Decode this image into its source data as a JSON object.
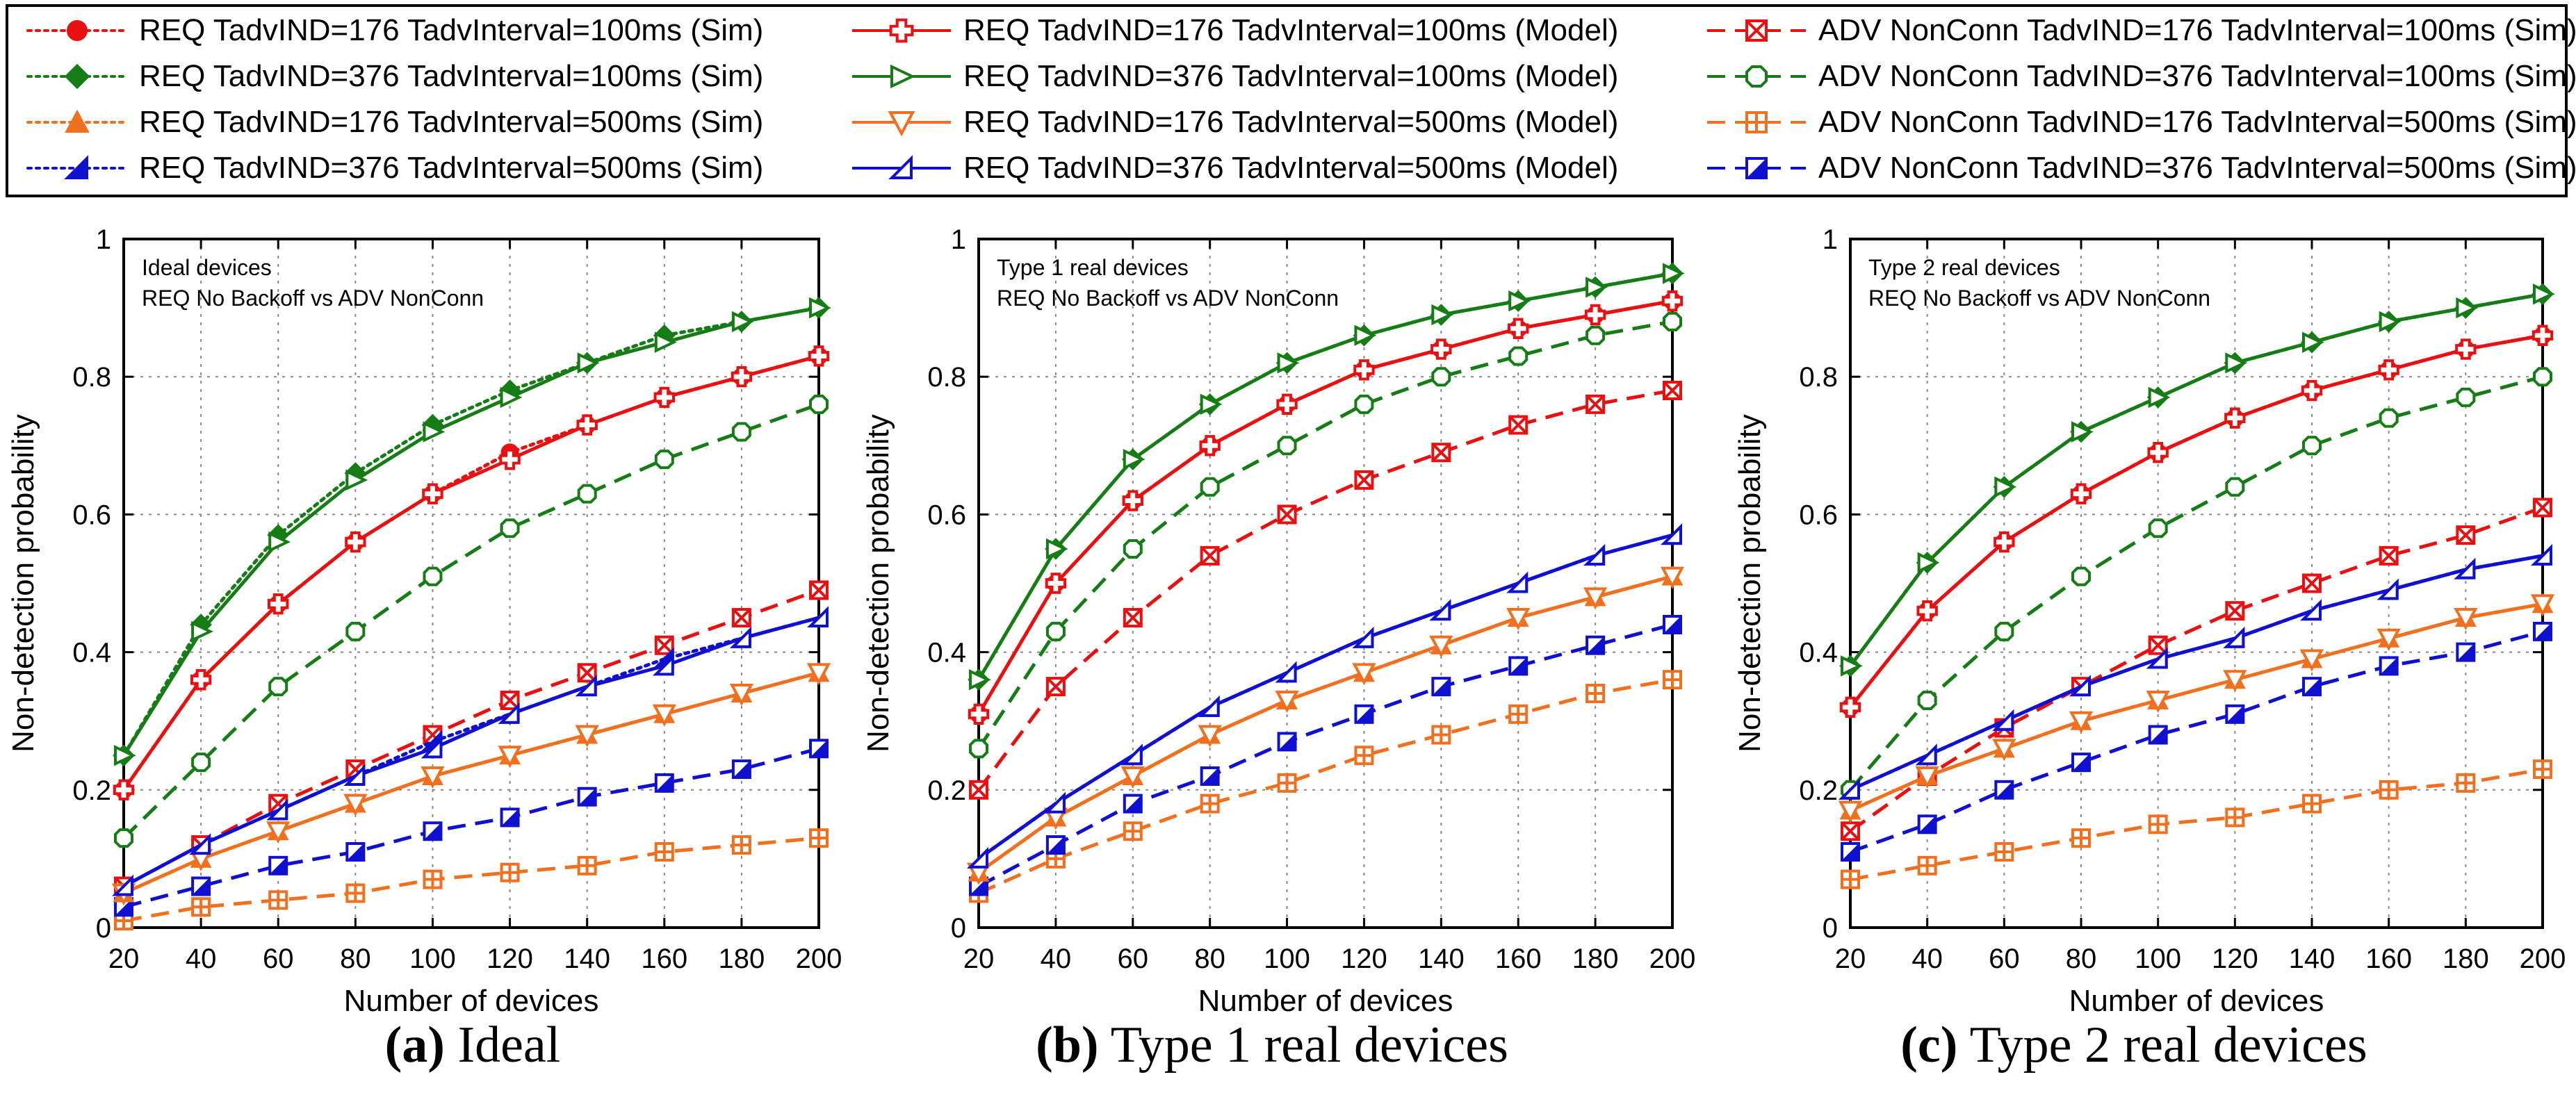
{
  "legend": [
    {
      "label": "REQ TadvIND=176 TadvInterval=100ms (Sim)",
      "color": "#e81010",
      "dash": "dotted",
      "marker": "circle"
    },
    {
      "label": "REQ TadvIND=376 TadvInterval=100ms (Sim)",
      "color": "#167d16",
      "dash": "dotted",
      "marker": "diamond"
    },
    {
      "label": "REQ TadvIND=176 TadvInterval=500ms (Sim)",
      "color": "#f07020",
      "dash": "dotted",
      "marker": "triangle"
    },
    {
      "label": "REQ TadvIND=376 TadvInterval=500ms (Sim)",
      "color": "#1010d0",
      "dash": "dotted",
      "marker": "halftriangle"
    },
    {
      "label": "REQ TadvIND=176 TadvInterval=100ms (Model)",
      "color": "#e81010",
      "dash": "solid",
      "marker": "cross"
    },
    {
      "label": "REQ TadvIND=376 TadvInterval=100ms (Model)",
      "color": "#167d16",
      "dash": "solid",
      "marker": "righttri"
    },
    {
      "label": "REQ TadvIND=176 TadvInterval=500ms (Model)",
      "color": "#f07020",
      "dash": "solid",
      "marker": "downtri"
    },
    {
      "label": "REQ TadvIND=376 TadvInterval=500ms (Model)",
      "color": "#1010d0",
      "dash": "solid",
      "marker": "opentri"
    },
    {
      "label": "ADV NonConn TadvIND=176 TadvInterval=100ms (Sim)",
      "color": "#e81010",
      "dash": "dashed",
      "marker": "squarex"
    },
    {
      "label": "ADV NonConn TadvIND=376 TadvInterval=100ms (Sim)",
      "color": "#167d16",
      "dash": "dashed",
      "marker": "octagon"
    },
    {
      "label": "ADV NonConn TadvIND=176 TadvInterval=500ms (Sim)",
      "color": "#f07020",
      "dash": "dashed",
      "marker": "squareplus"
    },
    {
      "label": "ADV NonConn TadvIND=376 TadvInterval=500ms (Sim)",
      "color": "#1010d0",
      "dash": "dashed",
      "marker": "halfsquare"
    }
  ],
  "chart_data": [
    {
      "type": "line",
      "caption_letter": "(a)",
      "caption_text": " Ideal",
      "annotation": [
        "Ideal devices",
        "REQ No Backoff vs ADV NonConn"
      ],
      "xlabel": "Number of devices",
      "ylabel": "Non-detection probability",
      "xlim": [
        20,
        200
      ],
      "ylim": [
        0,
        1
      ],
      "x": [
        20,
        40,
        60,
        80,
        100,
        120,
        140,
        160,
        180,
        200
      ],
      "xticks": [
        "20",
        "40",
        "60",
        "80",
        "100",
        "120",
        "140",
        "160",
        "180",
        "200"
      ],
      "yticks": [
        "0",
        "0.2",
        "0.4",
        "0.6",
        "0.8",
        "1"
      ],
      "series": [
        {
          "name": "REQ TadvIND=176 TadvInterval=100ms (Sim)",
          "values": [
            0.2,
            0.36,
            0.47,
            0.56,
            0.63,
            0.69,
            0.73,
            0.77,
            0.8,
            0.83
          ]
        },
        {
          "name": "REQ TadvIND=376 TadvInterval=100ms (Sim)",
          "values": [
            0.25,
            0.44,
            0.57,
            0.66,
            0.73,
            0.78,
            0.82,
            0.86,
            0.88,
            0.9
          ]
        },
        {
          "name": "REQ TadvIND=176 TadvInterval=500ms (Sim)",
          "values": [
            0.05,
            0.1,
            0.14,
            0.18,
            0.22,
            0.25,
            0.28,
            0.31,
            0.34,
            0.37
          ]
        },
        {
          "name": "REQ TadvIND=376 TadvInterval=500ms (Sim)",
          "values": [
            0.06,
            0.12,
            0.17,
            0.22,
            0.27,
            0.31,
            0.35,
            0.39,
            0.42,
            0.45
          ]
        },
        {
          "name": "REQ TadvIND=176 TadvInterval=100ms (Model)",
          "values": [
            0.2,
            0.36,
            0.47,
            0.56,
            0.63,
            0.68,
            0.73,
            0.77,
            0.8,
            0.83
          ]
        },
        {
          "name": "REQ TadvIND=376 TadvInterval=100ms (Model)",
          "values": [
            0.25,
            0.43,
            0.56,
            0.65,
            0.72,
            0.77,
            0.82,
            0.85,
            0.88,
            0.9
          ]
        },
        {
          "name": "REQ TadvIND=176 TadvInterval=500ms (Model)",
          "values": [
            0.05,
            0.1,
            0.14,
            0.18,
            0.22,
            0.25,
            0.28,
            0.31,
            0.34,
            0.37
          ]
        },
        {
          "name": "REQ TadvIND=376 TadvInterval=500ms (Model)",
          "values": [
            0.06,
            0.12,
            0.17,
            0.22,
            0.26,
            0.31,
            0.35,
            0.38,
            0.42,
            0.45
          ]
        },
        {
          "name": "ADV NonConn TadvIND=176 TadvInterval=100ms (Sim)",
          "values": [
            0.06,
            0.12,
            0.18,
            0.23,
            0.28,
            0.33,
            0.37,
            0.41,
            0.45,
            0.49
          ]
        },
        {
          "name": "ADV NonConn TadvIND=376 TadvInterval=100ms (Sim)",
          "values": [
            0.13,
            0.24,
            0.35,
            0.43,
            0.51,
            0.58,
            0.63,
            0.68,
            0.72,
            0.76
          ]
        },
        {
          "name": "ADV NonConn TadvIND=176 TadvInterval=500ms (Sim)",
          "values": [
            0.01,
            0.03,
            0.04,
            0.05,
            0.07,
            0.08,
            0.09,
            0.11,
            0.12,
            0.13
          ]
        },
        {
          "name": "ADV NonConn TadvIND=376 TadvInterval=500ms (Sim)",
          "values": [
            0.03,
            0.06,
            0.09,
            0.11,
            0.14,
            0.16,
            0.19,
            0.21,
            0.23,
            0.26
          ]
        }
      ]
    },
    {
      "type": "line",
      "caption_letter": "(b)",
      "caption_text": " Type 1 real devices",
      "annotation": [
        "Type 1 real devices",
        "REQ No Backoff vs ADV NonConn"
      ],
      "xlabel": "Number of devices",
      "ylabel": "Non-detection probability",
      "xlim": [
        20,
        200
      ],
      "ylim": [
        0,
        1
      ],
      "x": [
        20,
        40,
        60,
        80,
        100,
        120,
        140,
        160,
        180,
        200
      ],
      "xticks": [
        "20",
        "40",
        "60",
        "80",
        "100",
        "120",
        "140",
        "160",
        "180",
        "200"
      ],
      "yticks": [
        "0",
        "0.2",
        "0.4",
        "0.6",
        "0.8",
        "1"
      ],
      "series": [
        {
          "name": "REQ TadvIND=176 TadvInterval=100ms (Sim)",
          "values": [
            0.31,
            0.5,
            0.62,
            0.7,
            0.76,
            0.81,
            0.84,
            0.87,
            0.89,
            0.91
          ]
        },
        {
          "name": "REQ TadvIND=376 TadvInterval=100ms (Sim)",
          "values": [
            0.36,
            0.55,
            0.68,
            0.76,
            0.82,
            0.86,
            0.89,
            0.91,
            0.93,
            0.95
          ]
        },
        {
          "name": "REQ TadvIND=176 TadvInterval=500ms (Sim)",
          "values": [
            0.08,
            0.16,
            0.22,
            0.28,
            0.33,
            0.37,
            0.41,
            0.45,
            0.48,
            0.51
          ]
        },
        {
          "name": "REQ TadvIND=376 TadvInterval=500ms (Sim)",
          "values": [
            0.1,
            0.18,
            0.25,
            0.32,
            0.37,
            0.42,
            0.46,
            0.5,
            0.54,
            0.57
          ]
        },
        {
          "name": "REQ TadvIND=176 TadvInterval=100ms (Model)",
          "values": [
            0.31,
            0.5,
            0.62,
            0.7,
            0.76,
            0.81,
            0.84,
            0.87,
            0.89,
            0.91
          ]
        },
        {
          "name": "REQ TadvIND=376 TadvInterval=100ms (Model)",
          "values": [
            0.36,
            0.55,
            0.68,
            0.76,
            0.82,
            0.86,
            0.89,
            0.91,
            0.93,
            0.95
          ]
        },
        {
          "name": "REQ TadvIND=176 TadvInterval=500ms (Model)",
          "values": [
            0.08,
            0.16,
            0.22,
            0.28,
            0.33,
            0.37,
            0.41,
            0.45,
            0.48,
            0.51
          ]
        },
        {
          "name": "REQ TadvIND=376 TadvInterval=500ms (Model)",
          "values": [
            0.1,
            0.18,
            0.25,
            0.32,
            0.37,
            0.42,
            0.46,
            0.5,
            0.54,
            0.57
          ]
        },
        {
          "name": "ADV NonConn TadvIND=176 TadvInterval=100ms (Sim)",
          "values": [
            0.2,
            0.35,
            0.45,
            0.54,
            0.6,
            0.65,
            0.69,
            0.73,
            0.76,
            0.78
          ]
        },
        {
          "name": "ADV NonConn TadvIND=376 TadvInterval=100ms (Sim)",
          "values": [
            0.26,
            0.43,
            0.55,
            0.64,
            0.7,
            0.76,
            0.8,
            0.83,
            0.86,
            0.88
          ]
        },
        {
          "name": "ADV NonConn TadvIND=176 TadvInterval=500ms (Sim)",
          "values": [
            0.05,
            0.1,
            0.14,
            0.18,
            0.21,
            0.25,
            0.28,
            0.31,
            0.34,
            0.36
          ]
        },
        {
          "name": "ADV NonConn TadvIND=376 TadvInterval=500ms (Sim)",
          "values": [
            0.06,
            0.12,
            0.18,
            0.22,
            0.27,
            0.31,
            0.35,
            0.38,
            0.41,
            0.44
          ]
        }
      ]
    },
    {
      "type": "line",
      "caption_letter": "(c)",
      "caption_text": " Type 2 real devices",
      "annotation": [
        "Type 2 real devices",
        "REQ No Backoff vs ADV NonConn"
      ],
      "xlabel": "Number of devices",
      "ylabel": "Non-detection probability",
      "xlim": [
        20,
        200
      ],
      "ylim": [
        0,
        1
      ],
      "x": [
        20,
        40,
        60,
        80,
        100,
        120,
        140,
        160,
        180,
        200
      ],
      "xticks": [
        "20",
        "40",
        "60",
        "80",
        "100",
        "120",
        "140",
        "160",
        "180",
        "200"
      ],
      "yticks": [
        "0",
        "0.2",
        "0.4",
        "0.6",
        "0.8",
        "1"
      ],
      "series": [
        {
          "name": "REQ TadvIND=176 TadvInterval=100ms (Sim)",
          "values": [
            0.32,
            0.46,
            0.56,
            0.63,
            0.69,
            0.74,
            0.78,
            0.81,
            0.84,
            0.86
          ]
        },
        {
          "name": "REQ TadvIND=376 TadvInterval=100ms (Sim)",
          "values": [
            0.38,
            0.53,
            0.64,
            0.72,
            0.77,
            0.82,
            0.85,
            0.88,
            0.9,
            0.92
          ]
        },
        {
          "name": "REQ TadvIND=176 TadvInterval=500ms (Sim)",
          "values": [
            0.17,
            0.22,
            0.26,
            0.3,
            0.33,
            0.36,
            0.39,
            0.42,
            0.45,
            0.47
          ]
        },
        {
          "name": "REQ TadvIND=376 TadvInterval=500ms (Sim)",
          "values": [
            0.2,
            0.25,
            0.3,
            0.35,
            0.39,
            0.42,
            0.46,
            0.49,
            0.52,
            0.54
          ]
        },
        {
          "name": "REQ TadvIND=176 TadvInterval=100ms (Model)",
          "values": [
            0.32,
            0.46,
            0.56,
            0.63,
            0.69,
            0.74,
            0.78,
            0.81,
            0.84,
            0.86
          ]
        },
        {
          "name": "REQ TadvIND=376 TadvInterval=100ms (Model)",
          "values": [
            0.38,
            0.53,
            0.64,
            0.72,
            0.77,
            0.82,
            0.85,
            0.88,
            0.9,
            0.92
          ]
        },
        {
          "name": "REQ TadvIND=176 TadvInterval=500ms (Model)",
          "values": [
            0.17,
            0.22,
            0.26,
            0.3,
            0.33,
            0.36,
            0.39,
            0.42,
            0.45,
            0.47
          ]
        },
        {
          "name": "REQ TadvIND=376 TadvInterval=500ms (Model)",
          "values": [
            0.2,
            0.25,
            0.3,
            0.35,
            0.39,
            0.42,
            0.46,
            0.49,
            0.52,
            0.54
          ]
        },
        {
          "name": "ADV NonConn TadvIND=176 TadvInterval=100ms (Sim)",
          "values": [
            0.14,
            0.22,
            0.29,
            0.35,
            0.41,
            0.46,
            0.5,
            0.54,
            0.57,
            0.61
          ]
        },
        {
          "name": "ADV NonConn TadvIND=376 TadvInterval=100ms (Sim)",
          "values": [
            0.2,
            0.33,
            0.43,
            0.51,
            0.58,
            0.64,
            0.7,
            0.74,
            0.77,
            0.8
          ]
        },
        {
          "name": "ADV NonConn TadvIND=176 TadvInterval=500ms (Sim)",
          "values": [
            0.07,
            0.09,
            0.11,
            0.13,
            0.15,
            0.16,
            0.18,
            0.2,
            0.21,
            0.23
          ]
        },
        {
          "name": "ADV NonConn TadvIND=376 TadvInterval=500ms (Sim)",
          "values": [
            0.11,
            0.15,
            0.2,
            0.24,
            0.28,
            0.31,
            0.35,
            0.38,
            0.4,
            0.43
          ]
        }
      ]
    }
  ]
}
